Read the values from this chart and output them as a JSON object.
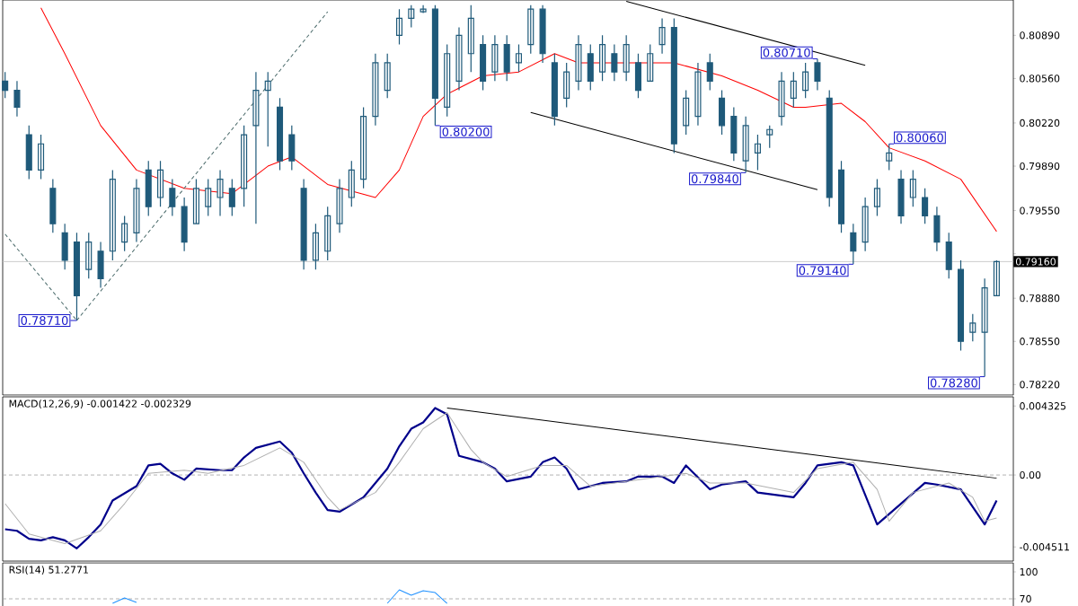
{
  "chart_data": [
    {
      "type": "candlestick",
      "color": "#1f5a7a",
      "tick_labels": "y",
      "categories": [
        null,
        null,
        null,
        null,
        null,
        null,
        null,
        null,
        null,
        null,
        null,
        null,
        null,
        null,
        null,
        null,
        null,
        null,
        null,
        null,
        null,
        null,
        null,
        null,
        null,
        null,
        null,
        null,
        null,
        null,
        null,
        null,
        null,
        null,
        null,
        null,
        null,
        null,
        null,
        null,
        null,
        null,
        null,
        null,
        null,
        null,
        null,
        null,
        null,
        null,
        null,
        null,
        null,
        null,
        null,
        null,
        null,
        null,
        null,
        null,
        null,
        null,
        null,
        null,
        null,
        null,
        null,
        null,
        null,
        null,
        null,
        null,
        null,
        null,
        null,
        null,
        null,
        null,
        null,
        null,
        null,
        null,
        null,
        null
      ],
      "ohlc": [
        [
          0.8054,
          0.8061,
          0.8041,
          0.8047
        ],
        [
          0.8047,
          0.8054,
          0.8027,
          0.8034
        ],
        [
          0.8013,
          0.802,
          0.7979,
          0.7986
        ],
        [
          0.7986,
          0.8013,
          0.7979,
          0.8006
        ],
        [
          0.7972,
          0.7979,
          0.7938,
          0.7945
        ],
        [
          0.7938,
          0.7945,
          0.791,
          0.7917
        ],
        [
          0.7931,
          0.7938,
          0.7871,
          0.789
        ],
        [
          0.791,
          0.7938,
          0.7903,
          0.7931
        ],
        [
          0.7924,
          0.7931,
          0.7896,
          0.7903
        ],
        [
          0.7924,
          0.7986,
          0.7917,
          0.7979
        ],
        [
          0.7931,
          0.7951,
          0.7924,
          0.7945
        ],
        [
          0.7938,
          0.7979,
          0.7931,
          0.7972
        ],
        [
          0.7986,
          0.7993,
          0.7951,
          0.7958
        ],
        [
          0.7965,
          0.7993,
          0.7958,
          0.7986
        ],
        [
          0.7972,
          0.7979,
          0.7951,
          0.7958
        ],
        [
          0.7958,
          0.7965,
          0.7924,
          0.7931
        ],
        [
          0.7945,
          0.7979,
          0.7945,
          0.7972
        ],
        [
          0.7958,
          0.7979,
          0.7951,
          0.7972
        ],
        [
          0.7965,
          0.7986,
          0.7951,
          0.7979
        ],
        [
          0.7972,
          0.7979,
          0.7951,
          0.7958
        ],
        [
          0.7972,
          0.802,
          0.7958,
          0.8013
        ],
        [
          0.802,
          0.8061,
          0.7945,
          0.8047
        ],
        [
          0.8047,
          0.8061,
          0.8004,
          0.8054
        ],
        [
          0.8034,
          0.8041,
          0.7986,
          0.7993
        ],
        [
          0.8013,
          0.802,
          0.7986,
          0.7993
        ],
        [
          0.7972,
          0.7979,
          0.791,
          0.7917
        ],
        [
          0.7917,
          0.7945,
          0.791,
          0.7938
        ],
        [
          0.7924,
          0.7958,
          0.7917,
          0.7951
        ],
        [
          0.7945,
          0.7979,
          0.7938,
          0.7972
        ],
        [
          0.7965,
          0.7993,
          0.7958,
          0.7986
        ],
        [
          0.7979,
          0.8034,
          0.7972,
          0.8027
        ],
        [
          0.8027,
          0.8075,
          0.802,
          0.8068
        ],
        [
          0.8047,
          0.8075,
          0.8041,
          0.8068
        ],
        [
          0.8089,
          0.8109,
          0.8082,
          0.8102
        ],
        [
          0.8102,
          0.8112,
          0.8095,
          0.8109
        ],
        [
          0.8107,
          0.8112,
          0.8106,
          0.8109
        ],
        [
          0.8109,
          0.8112,
          0.802,
          0.8041
        ],
        [
          0.8034,
          0.8082,
          0.8027,
          0.8075
        ],
        [
          0.8054,
          0.8095,
          0.8047,
          0.8089
        ],
        [
          0.8075,
          0.8112,
          0.8061,
          0.8102
        ],
        [
          0.8082,
          0.8089,
          0.8047,
          0.8054
        ],
        [
          0.8061,
          0.8089,
          0.8054,
          0.8082
        ],
        [
          0.8082,
          0.8089,
          0.8054,
          0.8061
        ],
        [
          0.8068,
          0.8082,
          0.8061,
          0.8075
        ],
        [
          0.8082,
          0.8112,
          0.8075,
          0.8109
        ],
        [
          0.8109,
          0.8112,
          0.8068,
          0.8075
        ],
        [
          0.8068,
          0.8075,
          0.802,
          0.8027
        ],
        [
          0.8041,
          0.8068,
          0.8034,
          0.8061
        ],
        [
          0.8054,
          0.8089,
          0.8047,
          0.8082
        ],
        [
          0.8075,
          0.8082,
          0.8047,
          0.8054
        ],
        [
          0.8061,
          0.8089,
          0.8054,
          0.8082
        ],
        [
          0.8075,
          0.8082,
          0.8054,
          0.8061
        ],
        [
          0.8061,
          0.8089,
          0.8054,
          0.8082
        ],
        [
          0.8068,
          0.8075,
          0.8041,
          0.8047
        ],
        [
          0.8054,
          0.8082,
          0.8054,
          0.8075
        ],
        [
          0.8082,
          0.8102,
          0.8075,
          0.8095
        ],
        [
          0.8095,
          0.8102,
          0.7999,
          0.8006
        ],
        [
          0.802,
          0.8047,
          0.8013,
          0.8041
        ],
        [
          0.8027,
          0.8068,
          0.802,
          0.8061
        ],
        [
          0.8068,
          0.8075,
          0.8047,
          0.8054
        ],
        [
          0.8041,
          0.8047,
          0.8013,
          0.802
        ],
        [
          0.8027,
          0.8034,
          0.7993,
          0.7999
        ],
        [
          0.7993,
          0.8027,
          0.7984,
          0.802
        ],
        [
          0.7999,
          0.8013,
          0.7986,
          0.8006
        ],
        [
          0.8013,
          0.802,
          0.8003,
          0.8017
        ],
        [
          0.8027,
          0.8061,
          0.802,
          0.8054
        ],
        [
          0.8041,
          0.8061,
          0.8034,
          0.8054
        ],
        [
          0.8047,
          0.8068,
          0.8041,
          0.8061
        ],
        [
          0.8068,
          0.8071,
          0.8047,
          0.8054
        ],
        [
          0.8041,
          0.8047,
          0.7958,
          0.7965
        ],
        [
          0.7986,
          0.7993,
          0.7938,
          0.7945
        ],
        [
          0.7938,
          0.7945,
          0.7914,
          0.7924
        ],
        [
          0.7931,
          0.7965,
          0.7924,
          0.7958
        ],
        [
          0.7958,
          0.7979,
          0.7951,
          0.7972
        ],
        [
          0.7993,
          0.8006,
          0.7986,
          0.7999
        ],
        [
          0.7979,
          0.7986,
          0.7945,
          0.7951
        ],
        [
          0.7965,
          0.7986,
          0.7958,
          0.7979
        ],
        [
          0.7965,
          0.7972,
          0.7945,
          0.7951
        ],
        [
          0.7951,
          0.7958,
          0.7924,
          0.7931
        ],
        [
          0.7931,
          0.7938,
          0.7903,
          0.791
        ],
        [
          0.791,
          0.7917,
          0.7848,
          0.7855
        ],
        [
          0.7862,
          0.7876,
          0.7855,
          0.7869
        ],
        [
          0.7862,
          0.7903,
          0.7828,
          0.7896
        ],
        [
          0.789,
          0.7917,
          0.789,
          0.7916
        ]
      ],
      "series": [
        {
          "type": "line",
          "color": "#ff0000",
          "values": [
            null,
            null,
            null,
            0.811,
            null,
            0.8075,
            null,
            null,
            0.802,
            null,
            null,
            0.7986,
            null,
            null,
            null,
            0.7972,
            null,
            null,
            null,
            0.7968,
            null,
            null,
            0.7989,
            null,
            0.7996,
            null,
            null,
            0.7975,
            null,
            null,
            null,
            0.7965,
            null,
            0.7986,
            null,
            0.8027,
            null,
            0.8044,
            null,
            null,
            0.8058,
            null,
            null,
            0.8061,
            null,
            null,
            0.8075,
            null,
            0.8068,
            null,
            null,
            null,
            0.8068,
            null,
            null,
            null,
            0.8068,
            null,
            null,
            null,
            0.8058,
            null,
            null,
            0.8047,
            null,
            null,
            0.8034,
            0.8034,
            null,
            null,
            0.8037,
            null,
            0.8023,
            null,
            0.8003,
            null,
            null,
            0.7993,
            null,
            null,
            0.7979,
            null,
            null,
            0.7939
          ]
        },
        {
          "type": "line",
          "color": "#000000",
          "values": [
            null,
            null,
            null,
            null,
            null,
            null,
            null,
            null,
            null,
            null,
            null,
            null,
            null,
            null,
            null,
            null,
            null,
            null,
            null,
            null,
            null,
            null,
            null,
            null,
            null,
            null,
            null,
            null,
            null,
            null,
            null,
            null,
            null,
            null,
            null,
            null,
            null,
            null,
            null,
            null,
            null,
            null,
            null,
            null,
            null,
            null,
            null,
            null,
            null,
            null,
            null,
            null,
            0.8115,
            null,
            null,
            null,
            null,
            null,
            null,
            null,
            null,
            null,
            null,
            null,
            null,
            null,
            null,
            null,
            null,
            null,
            null,
            null,
            0.8066,
            null,
            null,
            null,
            null,
            null,
            null,
            null,
            null,
            null,
            null,
            null
          ]
        },
        {
          "type": "line",
          "color": "#000000",
          "values": [
            null,
            null,
            null,
            null,
            null,
            null,
            null,
            null,
            null,
            null,
            null,
            null,
            null,
            null,
            null,
            null,
            null,
            null,
            null,
            null,
            null,
            null,
            null,
            null,
            null,
            null,
            null,
            null,
            null,
            null,
            null,
            null,
            null,
            null,
            null,
            null,
            null,
            null,
            null,
            null,
            null,
            null,
            null,
            null,
            0.803,
            null,
            null,
            null,
            null,
            null,
            null,
            null,
            null,
            null,
            null,
            null,
            null,
            null,
            null,
            null,
            null,
            null,
            null,
            null,
            null,
            null,
            null,
            null,
            0.7971,
            null,
            null,
            null,
            null,
            null,
            null,
            null,
            null,
            null,
            null,
            null,
            null,
            null,
            null,
            null
          ]
        },
        {
          "type": "line",
          "color": "#4a6a6a",
          "line_style": "dashed",
          "values": [
            0.7937,
            null,
            null,
            null,
            null,
            null,
            0.7871,
            null,
            null,
            null,
            null,
            null,
            null,
            null,
            null,
            null,
            null,
            null,
            null,
            null,
            null,
            null,
            null,
            null,
            null,
            null,
            null,
            null,
            null,
            null,
            null,
            null,
            null,
            null,
            null,
            null,
            null,
            null,
            null,
            null,
            null,
            null,
            null,
            null,
            null,
            null,
            null,
            null,
            null,
            null,
            null,
            null,
            null,
            null,
            null,
            null,
            null,
            null,
            null,
            null,
            null,
            null,
            null,
            null,
            null,
            null,
            null,
            null,
            null,
            null,
            null,
            null,
            null,
            null,
            null,
            null,
            null,
            null,
            null,
            null,
            null,
            null,
            null,
            null
          ]
        },
        {
          "type": "line",
          "color": "#4a6a6a",
          "line_style": "dashed",
          "values": [
            null,
            null,
            null,
            null,
            null,
            null,
            0.7871,
            null,
            null,
            null,
            null,
            null,
            null,
            null,
            null,
            null,
            null,
            null,
            null,
            null,
            null,
            null,
            null,
            null,
            null,
            null,
            null,
            0.8107,
            null,
            null,
            null,
            null,
            null,
            null,
            null,
            null,
            null,
            null,
            null,
            null,
            null,
            null,
            null,
            null,
            null,
            null,
            null,
            null,
            null,
            null,
            null,
            null,
            null,
            null,
            null,
            null,
            null,
            null,
            null,
            null,
            null,
            null,
            null,
            null,
            null,
            null,
            null,
            null,
            null,
            null,
            null,
            null,
            null,
            null,
            null,
            null,
            null,
            null,
            null,
            null,
            null,
            null,
            null,
            null
          ]
        }
      ],
      "ylim": [
        0.7814,
        0.8116
      ],
      "yticks": [
        {
          "value": 0.8089,
          "label": "0.80890"
        },
        {
          "value": 0.8056,
          "label": "0.80560"
        },
        {
          "value": 0.8022,
          "label": "0.80220"
        },
        {
          "value": 0.7989,
          "label": "0.79890"
        },
        {
          "value": 0.7955,
          "label": "0.79550"
        },
        {
          "value": 0.7922,
          "label": null
        },
        {
          "value": 0.7888,
          "label": "0.78880"
        },
        {
          "value": 0.7855,
          "label": "0.78550"
        },
        {
          "value": 0.7822,
          "label": "0.78220"
        }
      ],
      "ref_lines": [
        {
          "axis": "y",
          "value": 0.7916,
          "label": "0.79160",
          "color": "#c0c0c0"
        }
      ],
      "annotations": [
        "0.78710",
        "0.80200",
        "0.79840",
        "0.80710",
        "0.80060",
        "0.79140",
        "0.78280"
      ]
    },
    {
      "type": "line",
      "title": "MACD(12,26,9) -0.001422 -0.002329",
      "tick_labels": "y",
      "categories": [
        null,
        null,
        null,
        null,
        null,
        null,
        null,
        null,
        null,
        null,
        null,
        null,
        null,
        null,
        null,
        null,
        null,
        null,
        null,
        null,
        null,
        null,
        null,
        null,
        null,
        null,
        null,
        null,
        null,
        null,
        null,
        null,
        null,
        null,
        null,
        null,
        null,
        null,
        null,
        null,
        null,
        null,
        null,
        null,
        null,
        null,
        null,
        null,
        null,
        null,
        null,
        null,
        null,
        null,
        null,
        null,
        null,
        null,
        null,
        null,
        null,
        null,
        null,
        null,
        null,
        null,
        null,
        null,
        null,
        null,
        null,
        null,
        null,
        null,
        null,
        null,
        null,
        null,
        null,
        null,
        null,
        null,
        null,
        null
      ],
      "series": [
        {
          "color": "#00008b",
          "values": [
            -0.0034,
            -0.0035,
            -0.004,
            -0.0041,
            -0.0039,
            -0.0041,
            -0.0046,
            -0.0039,
            -0.0031,
            -0.0016,
            null,
            -0.0007,
            0.0006,
            0.0007,
            0.0001,
            -0.0003,
            0.0004,
            null,
            0.0003,
            0.0003,
            0.0011,
            0.0017,
            null,
            0.0021,
            0.0014,
            0.0001,
            -0.0011,
            -0.0022,
            -0.0023,
            null,
            -0.0014,
            -0.0005,
            0.0004,
            0.0018,
            0.0029,
            0.0033,
            0.0042,
            0.0038,
            0.0012,
            null,
            0.0008,
            0.0004,
            -0.0004,
            null,
            -0.0001,
            0.0008,
            0.0011,
            0.0004,
            -0.0009,
            null,
            -0.0005,
            null,
            -0.0004,
            -0.0001,
            null,
            -0.0001,
            -0.0005,
            0.0006,
            null,
            -0.0009,
            -0.0006,
            null,
            -0.0004,
            -0.0011,
            null,
            null,
            -0.0014,
            -0.0005,
            0.0006,
            null,
            0.0008,
            0.0006,
            null,
            -0.0031,
            null,
            -0.0018,
            null,
            -0.0005,
            -0.0006,
            null,
            -0.0009,
            null,
            -0.0031,
            -0.0016
          ]
        },
        {
          "color": "#b0b0b0",
          "values": [
            -0.0018,
            null,
            -0.0037,
            null,
            null,
            -0.0043,
            null,
            null,
            -0.0035,
            null,
            -0.0018,
            null,
            0.0001,
            null,
            null,
            0.0003,
            null,
            0.0001,
            null,
            null,
            0.0006,
            null,
            null,
            0.0017,
            null,
            0.0008,
            null,
            -0.0014,
            -0.0022,
            null,
            null,
            -0.0011,
            null,
            0.0008,
            null,
            0.0029,
            null,
            0.0039,
            null,
            0.0016,
            0.0008,
            null,
            -0.0001,
            null,
            null,
            0.0006,
            null,
            0.0006,
            null,
            -0.0007,
            null,
            null,
            -0.0004,
            null,
            null,
            -0.0001,
            null,
            0.0001,
            null,
            -0.0005,
            null,
            null,
            -0.0005,
            null,
            null,
            null,
            -0.0011,
            null,
            0.0004,
            null,
            null,
            0.0008,
            null,
            -0.0009,
            -0.0029,
            null,
            -0.0011,
            null,
            null,
            -0.0005,
            null,
            -0.0014,
            -0.0029,
            -0.0027
          ]
        },
        {
          "color": "#000000",
          "values": [
            null,
            null,
            null,
            null,
            null,
            null,
            null,
            null,
            null,
            null,
            null,
            null,
            null,
            null,
            null,
            null,
            null,
            null,
            null,
            null,
            null,
            null,
            null,
            null,
            null,
            null,
            null,
            null,
            null,
            null,
            null,
            null,
            null,
            null,
            null,
            null,
            null,
            0.0042,
            null,
            null,
            null,
            null,
            null,
            null,
            null,
            null,
            null,
            null,
            null,
            null,
            null,
            null,
            null,
            null,
            null,
            null,
            null,
            null,
            null,
            null,
            null,
            null,
            null,
            null,
            null,
            null,
            null,
            null,
            null,
            null,
            null,
            null,
            null,
            null,
            null,
            null,
            null,
            null,
            null,
            null,
            null,
            null,
            null,
            -0.0002
          ]
        }
      ],
      "ylim": [
        -0.0054,
        0.0049
      ],
      "yticks": [
        0.004325,
        {
          "value": 0,
          "label": "0.00"
        },
        -0.004511
      ],
      "ref_lines": [
        {
          "axis": "y",
          "value": 0,
          "color": "#a0a0a0",
          "line_style": "dashed"
        }
      ]
    },
    {
      "type": "line",
      "title": "RSI(14) 51.2771",
      "tick_labels": "y",
      "categories": [
        null,
        null,
        null,
        null,
        null,
        null,
        null,
        null,
        null,
        null,
        null,
        null,
        null,
        null,
        null,
        null,
        null,
        null,
        null,
        null,
        null,
        null,
        null,
        null,
        null,
        null,
        null,
        null,
        null,
        null,
        null,
        null,
        null,
        null,
        null,
        null,
        null,
        null,
        null,
        null,
        null,
        null,
        null,
        null,
        null,
        null,
        null,
        null,
        null,
        null,
        null,
        null,
        null,
        null,
        null,
        null,
        null,
        null,
        null,
        null,
        null,
        null,
        null,
        null,
        null,
        null,
        null,
        null,
        null,
        null,
        null,
        null,
        null,
        null,
        null,
        null,
        null,
        null,
        null,
        null,
        null,
        null,
        null,
        null
      ],
      "series": [
        {
          "color": "#1e90ff",
          "values": [
            null,
            null,
            null,
            null,
            null,
            null,
            null,
            null,
            null,
            65,
            71,
            66,
            null,
            null,
            null,
            null,
            null,
            null,
            null,
            null,
            null,
            null,
            null,
            null,
            null,
            null,
            null,
            null,
            null,
            null,
            null,
            null,
            null,
            null,
            null,
            null,
            null,
            null,
            null,
            null,
            null,
            null,
            null,
            null,
            null,
            null,
            null,
            null,
            null,
            null,
            null,
            null,
            null,
            null,
            null,
            null,
            null,
            null,
            null,
            null,
            null,
            null,
            null,
            null,
            null,
            null,
            null,
            null,
            null,
            null,
            null,
            null,
            null,
            null,
            null,
            null,
            null,
            null,
            null,
            null,
            null,
            null,
            null,
            null
          ]
        },
        {
          "color": "#1e90ff",
          "values": [
            null,
            null,
            null,
            null,
            null,
            null,
            null,
            null,
            null,
            null,
            null,
            null,
            null,
            null,
            null,
            null,
            null,
            null,
            null,
            null,
            null,
            null,
            null,
            null,
            null,
            null,
            null,
            null,
            null,
            null,
            null,
            null,
            65,
            80,
            74,
            79,
            77,
            65,
            null,
            null,
            null,
            null,
            null,
            null,
            null,
            null,
            null,
            null,
            null,
            null,
            null,
            null,
            null,
            null,
            null,
            null,
            null,
            null,
            null,
            null,
            null,
            null,
            null,
            null,
            null,
            null,
            null,
            null,
            null,
            null,
            null,
            null,
            null,
            null,
            null,
            null,
            null,
            null,
            null,
            null,
            null,
            null,
            null,
            null
          ]
        }
      ],
      "ylim": [
        50,
        110
      ],
      "yticks": [
        100,
        70
      ],
      "ref_lines": [
        {
          "axis": "y",
          "value": 70,
          "color": "#a0a0a0",
          "line_style": "dashed"
        }
      ]
    }
  ]
}
